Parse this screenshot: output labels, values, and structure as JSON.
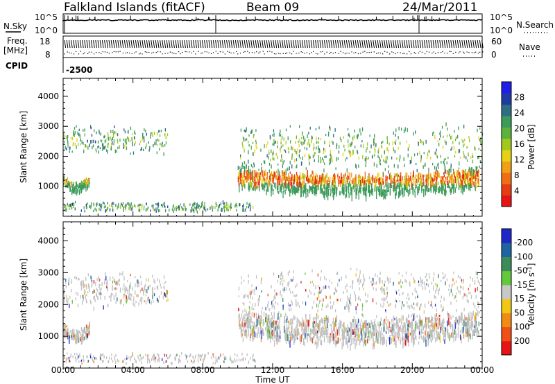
{
  "header": {
    "station": "Falkland Islands (fitACF)",
    "beam": "Beam 09",
    "date": "24/Mar/2011"
  },
  "noise_panel": {
    "left_label": "N.Sky",
    "right_label": "N.Search",
    "left_ticks": [
      "10^5",
      "10^0"
    ],
    "right_ticks": [
      "10^5",
      "10^0"
    ],
    "right_line_style": "dotted"
  },
  "freq_panel": {
    "left_label_1": "Freq.",
    "left_label_2": "[MHz]",
    "right_label": "Nave",
    "left_ticks": [
      "18",
      "8"
    ],
    "right_ticks": [
      "60",
      "0"
    ],
    "right_line_style": "dotted"
  },
  "cpid_panel": {
    "label": "CPID",
    "value": "-2500"
  },
  "chart_data": [
    {
      "type": "heatmap",
      "name_id": "power",
      "xlabel": "",
      "ylabel": "Slant Range [km]",
      "x_ticks": [
        "00:00",
        "04:00",
        "08:00",
        "12:00",
        "16:00",
        "20:00",
        "00:00"
      ],
      "xlim_hours": [
        0,
        24
      ],
      "y_ticks": [
        1000,
        2000,
        3000,
        4000
      ],
      "ylim": [
        0,
        4600
      ],
      "colorbar": {
        "label": "Power [dB]",
        "ticks": [
          "4",
          "8",
          "12",
          "16",
          "20",
          "24",
          "28"
        ],
        "colors": [
          "#1e1ee6",
          "#1e3ca0",
          "#2d6e82",
          "#3c9a5a",
          "#5ab43c",
          "#a0c81e",
          "#e6d214",
          "#f0a014",
          "#f06e14",
          "#e63c14",
          "#e61414"
        ]
      },
      "features": [
        {
          "desc": "ionospheric scatter band, strong",
          "t_start": 10.0,
          "t_end": 23.8,
          "range_center_km": 1350,
          "range_halfwidth_km": 350,
          "intensity": 0.8
        },
        {
          "desc": "upper diffuse scatter",
          "t_start": 10.0,
          "t_end": 24.0,
          "range_center_km": 2300,
          "range_halfwidth_km": 700,
          "intensity": 0.3
        },
        {
          "desc": "early morning band",
          "t_start": 0.0,
          "t_end": 1.5,
          "range_center_km": 1250,
          "range_halfwidth_km": 180,
          "intensity": 0.5
        },
        {
          "desc": "early morning upper scatter",
          "t_start": 0.0,
          "t_end": 6.0,
          "range_center_km": 2600,
          "range_halfwidth_km": 400,
          "intensity": 0.25
        },
        {
          "desc": "near range ground clutter",
          "t_start": 0.0,
          "t_end": 11.0,
          "range_center_km": 350,
          "range_halfwidth_km": 150,
          "intensity": 0.2
        }
      ]
    },
    {
      "type": "heatmap",
      "name_id": "velocity",
      "xlabel": "Time UT",
      "ylabel": "Slant Range [km]",
      "x_ticks": [
        "00:00",
        "04:00",
        "08:00",
        "12:00",
        "16:00",
        "20:00",
        "00:00"
      ],
      "xlim_hours": [
        0,
        24
      ],
      "y_ticks": [
        1000,
        2000,
        3000,
        4000
      ],
      "ylim": [
        0,
        4600
      ],
      "colorbar": {
        "label": "Velocity [m s-1]",
        "label_main": "Velocity [m s",
        "label_sup": "-1",
        "label_end": "]",
        "ticks": [
          "200",
          "100",
          "50",
          "15",
          "-15",
          "-50",
          "-100",
          "-200"
        ],
        "colors": [
          "#1e28c8",
          "#1e64a0",
          "#3c8c5a",
          "#64c83c",
          "#c8c8c8",
          "#f0c814",
          "#f08c14",
          "#f05014",
          "#e61414"
        ]
      },
      "ground_scatter_color": "#c0c0c0",
      "features": [
        {
          "desc": "ground scatter band (grey)",
          "t_start": 10.0,
          "t_end": 23.8,
          "range_center_km": 1450,
          "range_halfwidth_km": 400,
          "intensity": 0.8
        },
        {
          "desc": "upper scatter",
          "t_start": 10.0,
          "t_end": 24.0,
          "range_center_km": 2400,
          "range_halfwidth_km": 700,
          "intensity": 0.3
        },
        {
          "desc": "early morning ground scatter",
          "t_start": 0.0,
          "t_end": 6.0,
          "range_center_km": 2500,
          "range_halfwidth_km": 500,
          "intensity": 0.35
        },
        {
          "desc": "early morning band",
          "t_start": 0.0,
          "t_end": 1.5,
          "range_center_km": 1300,
          "range_halfwidth_km": 180,
          "intensity": 0.6
        },
        {
          "desc": "near range clutter",
          "t_start": 0.0,
          "t_end": 11.0,
          "range_center_km": 350,
          "range_halfwidth_km": 150,
          "intensity": 0.15
        }
      ]
    }
  ]
}
